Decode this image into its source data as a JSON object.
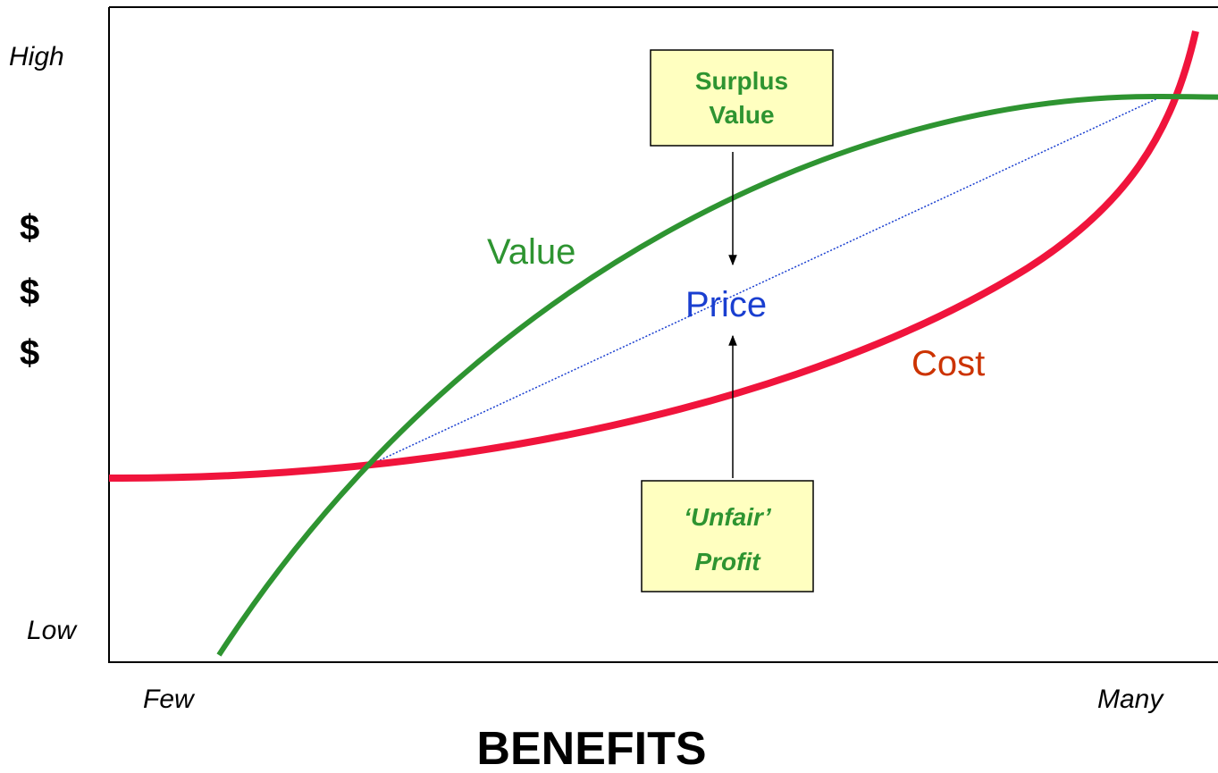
{
  "y_axis": {
    "high": "High",
    "low": "Low",
    "symbols": [
      "$",
      "$",
      "$"
    ]
  },
  "x_axis": {
    "few": "Few",
    "many": "Many",
    "title": "BENEFITS"
  },
  "curves": {
    "value": "Value",
    "cost": "Cost",
    "price": "Price"
  },
  "boxes": {
    "surplus": [
      "Surplus",
      "Value"
    ],
    "profit": [
      "‘Unfair’",
      "Profit"
    ]
  }
}
